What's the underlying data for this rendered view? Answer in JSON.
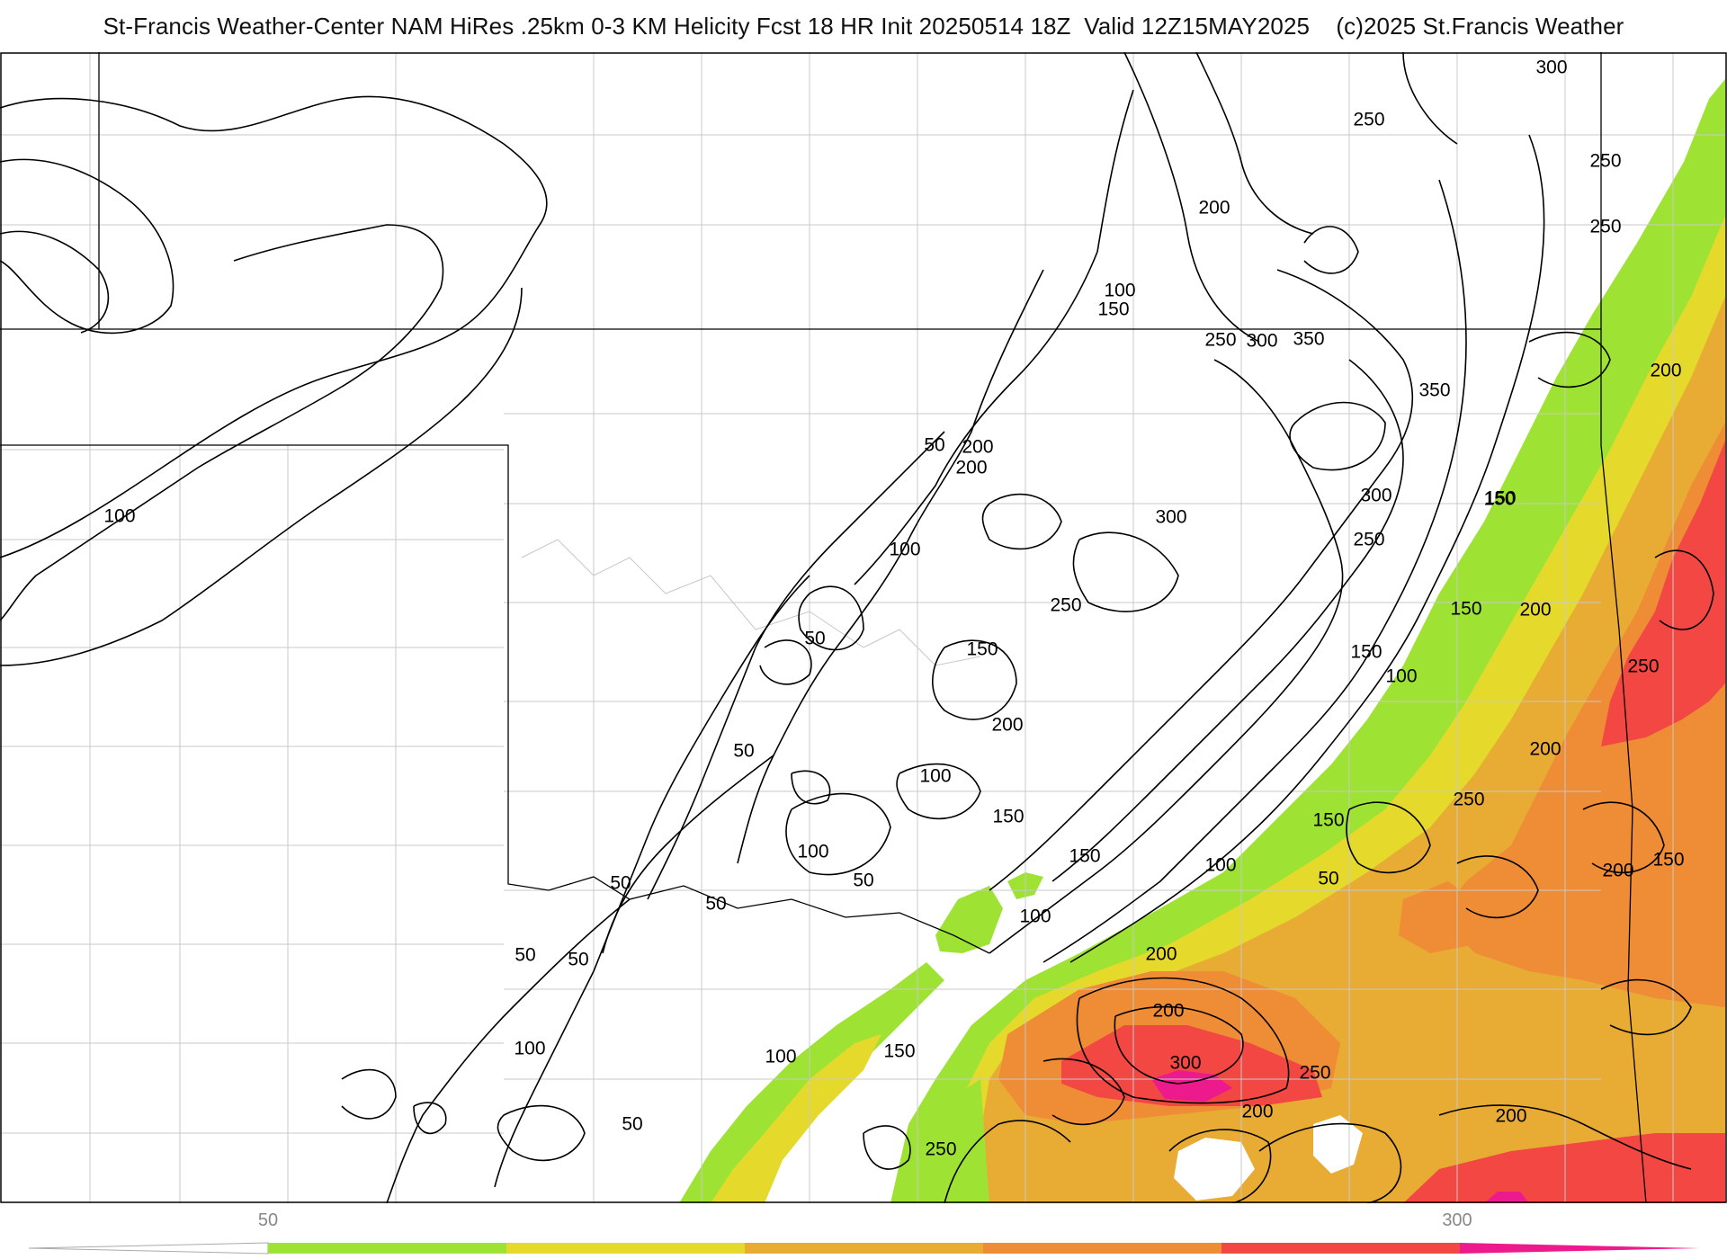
{
  "header": {
    "title": "St-Francis Weather-Center NAM HiRes .25km 0-3 KM Helicity Fcst 18 HR Init 20250514 18Z  Valid 12Z15MAY2025    (c)2025 St.Francis Weather"
  },
  "map": {
    "field": "0-3 KM Helicity",
    "contour_labels": [
      {
        "text": "300"
      },
      {
        "text": "250"
      },
      {
        "text": "200"
      },
      {
        "text": "250"
      },
      {
        "text": "100"
      },
      {
        "text": "150"
      },
      {
        "text": "250"
      },
      {
        "text": "300"
      },
      {
        "text": "350"
      },
      {
        "text": "350"
      },
      {
        "text": "200"
      },
      {
        "text": "50"
      },
      {
        "text": "200"
      },
      {
        "text": "300"
      },
      {
        "text": "300"
      },
      {
        "text": "250"
      },
      {
        "text": "150"
      },
      {
        "text": "100"
      },
      {
        "text": "250"
      },
      {
        "text": "50"
      },
      {
        "text": "150"
      },
      {
        "text": "200"
      },
      {
        "text": "100"
      },
      {
        "text": "150"
      },
      {
        "text": "50"
      },
      {
        "text": "100"
      },
      {
        "text": "200"
      },
      {
        "text": "150"
      },
      {
        "text": "100"
      },
      {
        "text": "50"
      },
      {
        "text": "50"
      },
      {
        "text": "50"
      },
      {
        "text": "50"
      },
      {
        "text": "200"
      },
      {
        "text": "100"
      },
      {
        "text": "100"
      },
      {
        "text": "150"
      },
      {
        "text": "50"
      },
      {
        "text": "250"
      },
      {
        "text": "300"
      },
      {
        "text": "250"
      },
      {
        "text": "200"
      },
      {
        "text": "200"
      },
      {
        "text": "150"
      },
      {
        "text": "200"
      },
      {
        "text": "250"
      },
      {
        "text": "200"
      },
      {
        "text": "150"
      },
      {
        "text": "250"
      },
      {
        "text": "200"
      },
      {
        "text": "150"
      },
      {
        "text": "200"
      },
      {
        "text": "250"
      },
      {
        "text": "150"
      },
      {
        "text": "50"
      },
      {
        "text": "100"
      },
      {
        "text": "100"
      },
      {
        "text": "50"
      },
      {
        "text": "150"
      },
      {
        "text": "100"
      }
    ]
  },
  "legend": {
    "label_low": "50",
    "label_high": "300",
    "colors": [
      "#9ee234",
      "#e5da2c",
      "#e8ab33",
      "#ef8c36",
      "#f24743",
      "#ec1a8c"
    ]
  }
}
